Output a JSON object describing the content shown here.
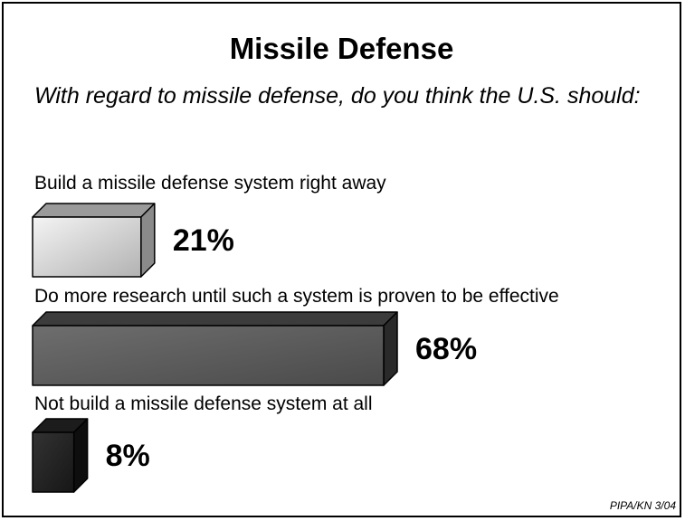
{
  "chart_data": {
    "type": "bar",
    "orientation": "horizontal",
    "title": "Missile Defense",
    "subtitle": "With regard to missile defense, do you think the U.S. should:",
    "categories": [
      "Build a missile defense system right away",
      "Do more research until such a system is proven to be effective",
      "Not build a missile defense system at all"
    ],
    "values": [
      21,
      68,
      8
    ],
    "value_labels": [
      "21%",
      "68%",
      "8%"
    ],
    "bar_colors": [
      "#d6d6d6",
      "#5a5a5a",
      "#262626"
    ],
    "xlim": [
      0,
      68
    ]
  },
  "source": "PIPA/KN 3/04"
}
